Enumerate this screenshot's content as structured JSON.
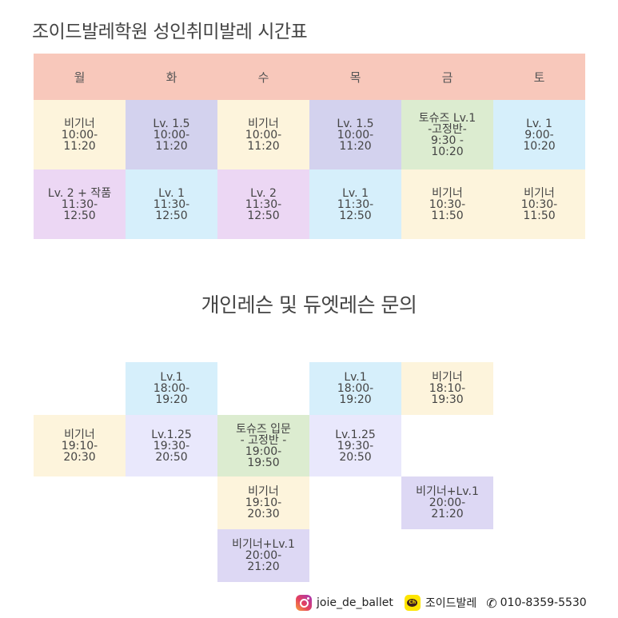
{
  "title": "조이드발레학원 성인취미발레 시간표",
  "subtitle": "개인레슨 및 듀엣레슨 문의",
  "days": [
    "월",
    "화",
    "수",
    "목",
    "금",
    "토"
  ],
  "rows": [
    [
      {
        "text": "비기너\n10:00-\n11:20",
        "color": "yellow"
      },
      {
        "text": "Lv. 1.5\n10:00-\n11:20",
        "color": "purple"
      },
      {
        "text": "비기너\n10:00-\n11:20",
        "color": "yellow"
      },
      {
        "text": "Lv. 1.5\n10:00-\n11:20",
        "color": "purple"
      },
      {
        "text": "토슈즈 Lv.1\n-고정반-\n9:30 -\n10:20",
        "color": "green"
      },
      {
        "text": "Lv. 1\n9:00-\n10:20",
        "color": "blue"
      }
    ],
    [
      {
        "text": "Lv. 2 + 작품\n11:30-\n12:50",
        "color": "violet"
      },
      {
        "text": "Lv. 1\n11:30-\n12:50",
        "color": "blue"
      },
      {
        "text": "Lv. 2\n11:30-\n12:50",
        "color": "violet"
      },
      {
        "text": "Lv. 1\n11:30-\n12:50",
        "color": "blue"
      },
      {
        "text": "비기너\n10:30-\n11:50",
        "color": "yellow"
      },
      {
        "text": "비기너\n10:30-\n11:50",
        "color": "yellow"
      }
    ]
  ],
  "evening": [
    {
      "text": "Lv.1\n18:00-\n19:20",
      "color": "blue"
    },
    {
      "text": "Lv.1\n18:00-\n19:20",
      "color": "blue"
    },
    {
      "text": "비기너\n18:10-\n19:30",
      "color": "yellow"
    },
    {
      "text": "비기너\n19:10-\n20:30",
      "color": "yellow"
    },
    {
      "text": "Lv.1.25\n19:30-\n20:50",
      "color": "lav"
    },
    {
      "text": "토슈즈 입문\n- 고정반 -\n19:00-\n19:50",
      "color": "green"
    },
    {
      "text": "Lv.1.25\n19:30-\n20:50",
      "color": "lav"
    },
    {
      "text": "비기너\n19:10-\n20:30",
      "color": "yellow"
    },
    {
      "text": "비기너+Lv.1\n20:00-\n21:20",
      "color": "deep"
    },
    {
      "text": "비기너+Lv.1\n20:00-\n21:20",
      "color": "deep"
    }
  ],
  "footer": {
    "instagram": "joie_de_ballet",
    "kakao": "조이드발레",
    "phone": "010-8359-5530",
    "icons": [
      "instagram-icon",
      "kakao-channel-icon",
      "phone-icon"
    ]
  },
  "colors": {
    "header": "#f8c8bb",
    "yellow": "#fdf4dc",
    "purple": "#d3d2ee",
    "violet": "#ecd7f4",
    "blue": "#d6effb",
    "green": "#dcecd0",
    "lav": "#e9e8fc",
    "deep": "#ddd8f4"
  }
}
